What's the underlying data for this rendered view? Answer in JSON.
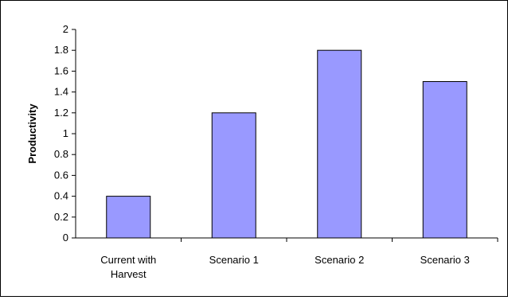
{
  "chart_data": {
    "type": "bar",
    "title": "",
    "xlabel": "",
    "ylabel": "Productivity",
    "categories": [
      [
        "Current with",
        "Harvest"
      ],
      [
        "Scenario 1"
      ],
      [
        "Scenario 2"
      ],
      [
        "Scenario 3"
      ]
    ],
    "values": [
      0.4,
      1.2,
      1.8,
      1.5
    ],
    "ylim": [
      0,
      2
    ],
    "yticks": [
      "0",
      "0.2",
      "0.4",
      "0.6",
      "0.8",
      "1",
      "1.2",
      "1.4",
      "1.6",
      "1.8",
      "2"
    ],
    "grid": false,
    "legend": "none",
    "colors": {
      "bar_fill": "#9999ff",
      "bar_stroke": "#000000",
      "axis": "#000000"
    }
  }
}
